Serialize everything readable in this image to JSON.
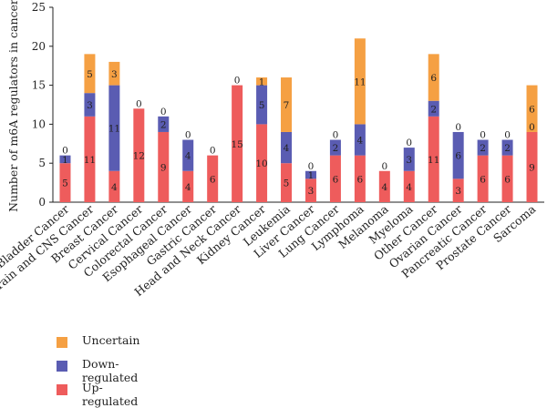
{
  "chart_data": {
    "type": "bar",
    "stacked": true,
    "ylabel": "Number of m6A regulators in cancer",
    "ylim": [
      0,
      25
    ],
    "yticks": [
      0,
      5,
      10,
      15,
      20,
      25
    ],
    "categories": [
      "Bladder Cancer",
      "Brain and CNS Cancer",
      "Breast Cancer",
      "Cervical Cancer",
      "Colorectal Cancer",
      "Esophageal Cancer",
      "Gastric Cancer",
      "Head and Neck Cancer",
      "Kidney Cancer",
      "Leukemia",
      "Liver Cancer",
      "Lung Cancer",
      "Lymphoma",
      "Melanoma",
      "Myeloma",
      "Other Cancer",
      "Ovarian Cancer",
      "Pancreatic Cancer",
      "Prostate Cancer",
      "Sarcoma"
    ],
    "series": [
      {
        "name": "Up-regulated",
        "color": "#ee5c5c",
        "values": [
          5,
          11,
          4,
          12,
          9,
          4,
          6,
          15,
          10,
          5,
          3,
          6,
          6,
          4,
          4,
          11,
          3,
          6,
          6,
          9
        ]
      },
      {
        "name": "Down-regulated",
        "color": "#5a5cb2",
        "values": [
          1,
          3,
          11,
          0,
          2,
          4,
          0,
          0,
          5,
          4,
          1,
          2,
          4,
          0,
          3,
          2,
          6,
          2,
          2,
          0
        ]
      },
      {
        "name": "Uncertain",
        "color": "#f5a043",
        "values": [
          0,
          5,
          3,
          0,
          0,
          0,
          0,
          0,
          1,
          7,
          0,
          0,
          11,
          0,
          0,
          6,
          0,
          0,
          0,
          6
        ]
      }
    ],
    "legend_order": [
      "Uncertain",
      "Down-regulated",
      "Up-regulated"
    ],
    "legend_position": "bottom-left",
    "grid": false
  }
}
